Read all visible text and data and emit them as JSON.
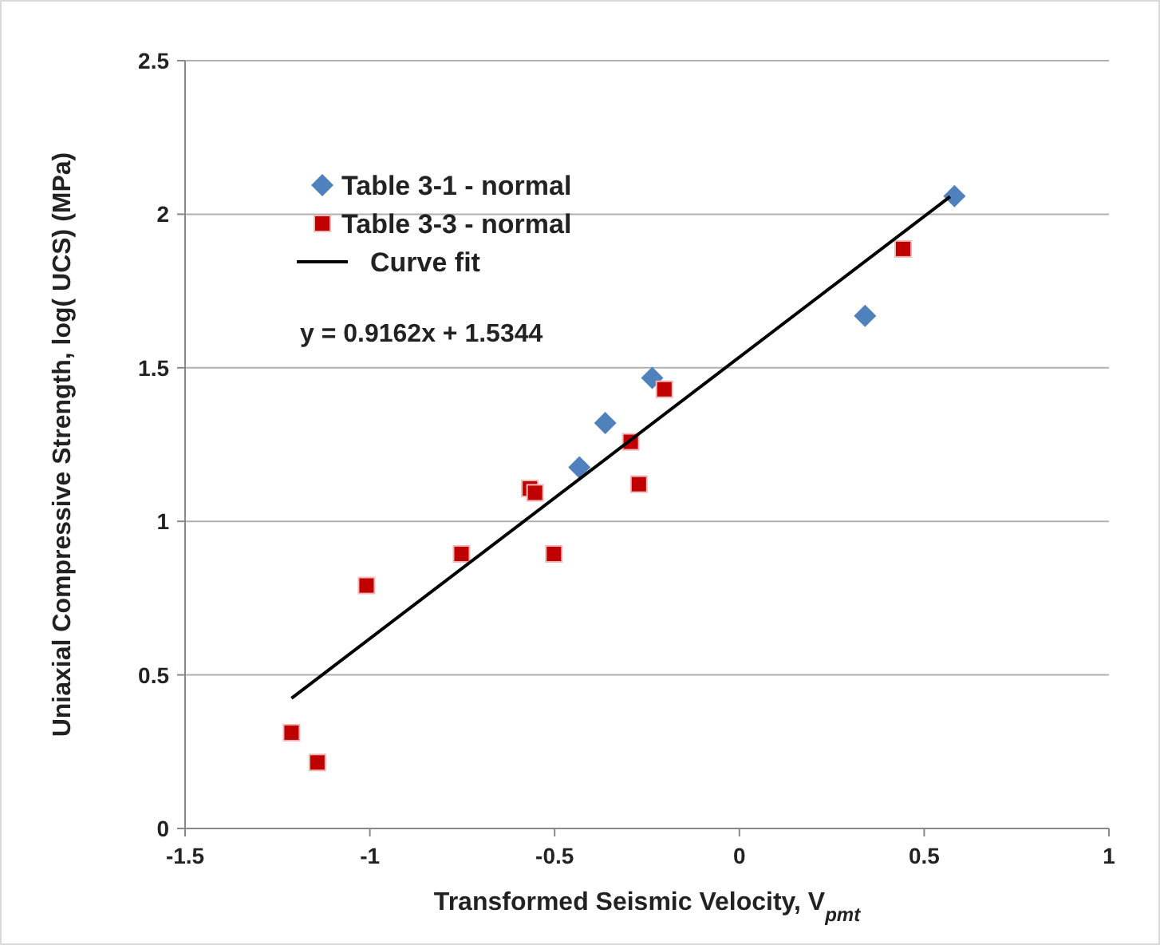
{
  "chart_data": {
    "type": "scatter",
    "xlabel": "Transformed Seismic Velocity, V$_{pmt}$",
    "ylabel": "Uniaxial Compressive Strength, log( UCS) (MPa)",
    "xlim": [
      -1.5,
      1
    ],
    "xticks": [
      -1.5,
      -1,
      -0.5,
      0,
      0.5,
      1
    ],
    "ylim": [
      0,
      2.5
    ],
    "yticks": [
      0,
      0.5,
      1,
      1.5,
      2,
      2.5
    ],
    "grid": "y",
    "legend": "top left",
    "annotations": [
      "y = 0.9162x + 1.5344"
    ],
    "series": [
      {
        "name": "Table 3-1 - normal",
        "color": "#4f81bd",
        "marker": "diamond",
        "x": [
          0.582,
          0.34,
          -0.236,
          -0.363,
          -0.433
        ],
        "values": [
          2.059,
          1.669,
          1.467,
          1.32,
          1.176
        ]
      },
      {
        "name": "Table 3-3 - normal",
        "color": "#c00000",
        "marker": "square",
        "x": [
          -1.212,
          -1.142,
          -1.009,
          -0.752,
          -0.567,
          -0.553,
          -0.502,
          -0.294,
          -0.272,
          -0.203,
          0.443
        ],
        "values": [
          0.312,
          0.215,
          0.791,
          0.894,
          1.107,
          1.093,
          0.894,
          1.259,
          1.121,
          1.43,
          1.887
        ]
      },
      {
        "name": "Curve fit",
        "type": "line",
        "color": "#000000",
        "marker": "none",
        "x": [
          -1.212,
          0.57
        ],
        "values": [
          0.424,
          2.057
        ]
      }
    ]
  }
}
